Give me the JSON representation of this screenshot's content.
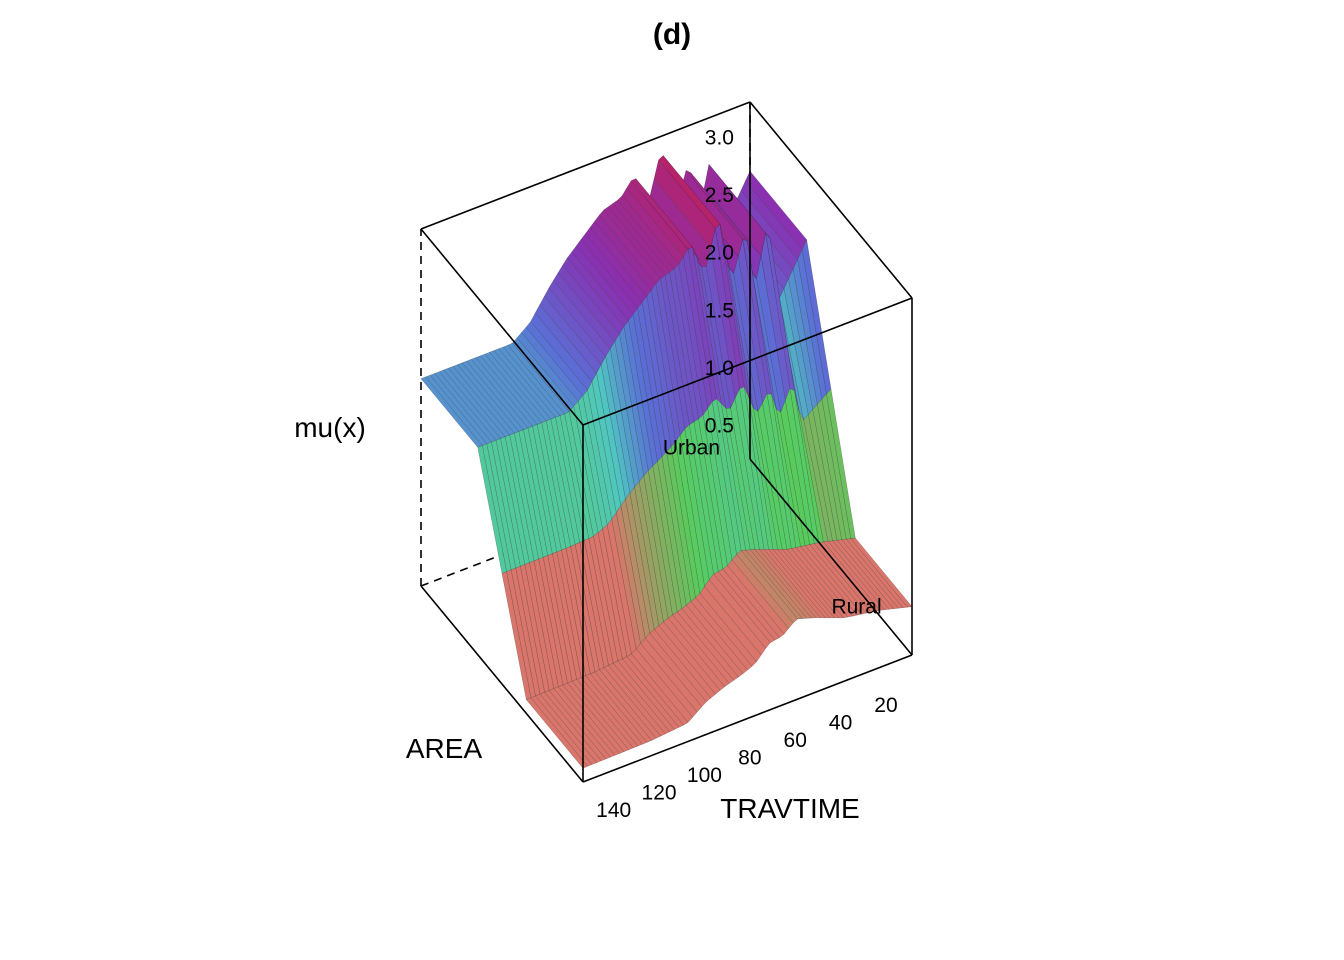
{
  "chart_data": {
    "type": "surface-3d",
    "title": "(d)",
    "xlabel": "TRAVTIME",
    "ylabel": "AREA",
    "zlabel": "mu(x)",
    "x_ticks": [
      20,
      40,
      60,
      80,
      100,
      120,
      140
    ],
    "y_categories": [
      "Rural",
      "Urban"
    ],
    "z_ticks": [
      0.5,
      1.0,
      1.5,
      2.0,
      2.5,
      3.0
    ],
    "xlim": [
      5,
      150
    ],
    "zlim": [
      0.2,
      3.3
    ],
    "box": true,
    "series": [
      {
        "name": "Rural",
        "x": [
          5,
          20,
          35,
          48,
          56,
          62,
          68,
          74,
          80,
          88,
          96,
          104,
          120,
          150
        ],
        "values": [
          0.62,
          0.7,
          0.75,
          0.85,
          0.9,
          0.8,
          0.78,
          0.65,
          0.6,
          0.55,
          0.48,
          0.36,
          0.33,
          0.32
        ]
      },
      {
        "name": "Urban",
        "x": [
          5,
          18,
          22,
          28,
          32,
          38,
          44,
          50,
          56,
          62,
          70,
          78,
          86,
          94,
          102,
          110,
          150
        ],
        "values": [
          2.7,
          2.25,
          3.0,
          2.45,
          3.0,
          2.6,
          3.2,
          2.75,
          3.05,
          2.9,
          2.85,
          2.7,
          2.55,
          2.35,
          2.12,
          2.0,
          2.0
        ]
      }
    ],
    "colors": {
      "low": "#d9756a",
      "mid": "#57cc5c",
      "cyan": "#4fc7c2",
      "blue": "#5a6fd6",
      "purple": "#8a2fb0",
      "high": "#c81e4e",
      "edge": "#222222"
    }
  }
}
